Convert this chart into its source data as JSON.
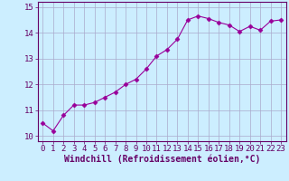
{
  "x": [
    0,
    1,
    2,
    3,
    4,
    5,
    6,
    7,
    8,
    9,
    10,
    11,
    12,
    13,
    14,
    15,
    16,
    17,
    18,
    19,
    20,
    21,
    22,
    23
  ],
  "y": [
    10.5,
    10.2,
    10.8,
    11.2,
    11.2,
    11.3,
    11.5,
    11.7,
    12.0,
    12.2,
    12.6,
    13.1,
    13.35,
    13.75,
    14.5,
    14.65,
    14.55,
    14.4,
    14.3,
    14.05,
    14.25,
    14.1,
    14.45,
    14.5
  ],
  "line_color": "#990099",
  "marker": "D",
  "marker_size": 2.5,
  "bg_color": "#cceeff",
  "grid_color": "#aaaacc",
  "xlabel": "Windchill (Refroidissement éolien,°C)",
  "xlabel_color": "#660066",
  "tick_color": "#660066",
  "ylim": [
    9.8,
    15.2
  ],
  "xlim": [
    -0.5,
    23.5
  ],
  "yticks": [
    10,
    11,
    12,
    13,
    14,
    15
  ],
  "xticks": [
    0,
    1,
    2,
    3,
    4,
    5,
    6,
    7,
    8,
    9,
    10,
    11,
    12,
    13,
    14,
    15,
    16,
    17,
    18,
    19,
    20,
    21,
    22,
    23
  ],
  "spine_color": "#660066",
  "font_size_xlabel": 7,
  "font_size_ticks": 6.5
}
